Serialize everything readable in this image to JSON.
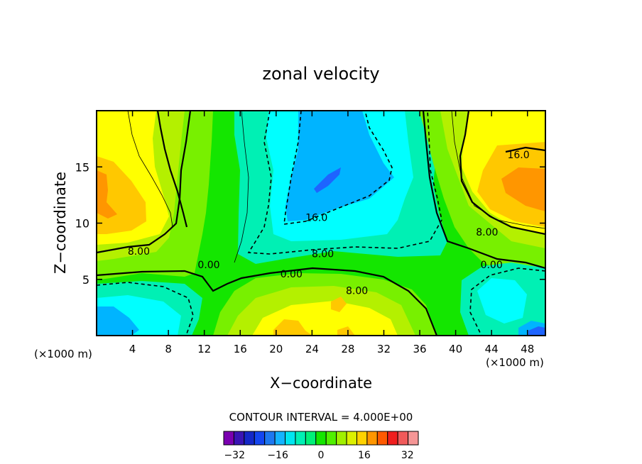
{
  "chart_data": {
    "type": "heatmap",
    "title": "zonal velocity",
    "xlabel": "X−coordinate",
    "ylabel": "Z−coordinate",
    "x_unit_left": "(×1000 m)",
    "x_unit_right": "(×1000 m)",
    "xlim": [
      0,
      50
    ],
    "ylim": [
      0,
      20
    ],
    "x_ticks": [
      4,
      8,
      12,
      16,
      20,
      24,
      28,
      32,
      36,
      40,
      44,
      48
    ],
    "x_tick_labels": [
      "4",
      "8",
      "12",
      "16",
      "20",
      "24",
      "28",
      "32",
      "36",
      "40",
      "44",
      "48"
    ],
    "y_ticks": [
      5,
      10,
      15
    ],
    "y_tick_labels": [
      "5",
      "10",
      "15"
    ],
    "contour_interval_text": "CONTOUR INTERVAL = 4.000E+00",
    "contour_labels": [
      {
        "text": "16.0",
        "x": 47.0,
        "z": 16.1
      },
      {
        "text": "16.0",
        "x": 24.5,
        "z": 10.5
      },
      {
        "text": "8.00",
        "x": 4.7,
        "z": 7.5
      },
      {
        "text": "8.00",
        "x": 25.2,
        "z": 7.3
      },
      {
        "text": "8.00",
        "x": 43.5,
        "z": 9.2
      },
      {
        "text": "8.00",
        "x": 29.0,
        "z": 4.0
      },
      {
        "text": "0.00",
        "x": 12.5,
        "z": 6.3
      },
      {
        "text": "0.00",
        "x": 21.7,
        "z": 5.5
      },
      {
        "text": "0.00",
        "x": 44.0,
        "z": 6.3
      }
    ],
    "colorbar": {
      "levels": [
        -36,
        -32,
        -28,
        -24,
        -20,
        -16,
        -12,
        -8,
        -4,
        0,
        4,
        8,
        12,
        16,
        20,
        24,
        28,
        32,
        36
      ],
      "colors": [
        "#7a00b0",
        "#3a14b4",
        "#1428c8",
        "#1446f0",
        "#1e78f0",
        "#14b4ff",
        "#00e6f0",
        "#00f0b4",
        "#00f078",
        "#14e600",
        "#50f000",
        "#a0f000",
        "#dcf000",
        "#ffd200",
        "#ff9600",
        "#ff5a00",
        "#f01e1e",
        "#f05a5a",
        "#f59696"
      ],
      "tick_values": [
        -32,
        -16,
        0,
        16,
        32
      ],
      "tick_labels": [
        "−32",
        "−16",
        "0",
        "16",
        "32"
      ]
    },
    "field_colors": {
      "lightblue": "#00b4ff",
      "cyan": "#00ffff",
      "aqua": "#00f0b4",
      "green": "#00f078",
      "brightgreen": "#14e600",
      "lime": "#78f000",
      "yellowgreen": "#b4f000",
      "yellow": "#ffff00",
      "gold": "#ffc800",
      "orange": "#ff9600",
      "darkblue": "#1e64ff"
    }
  }
}
